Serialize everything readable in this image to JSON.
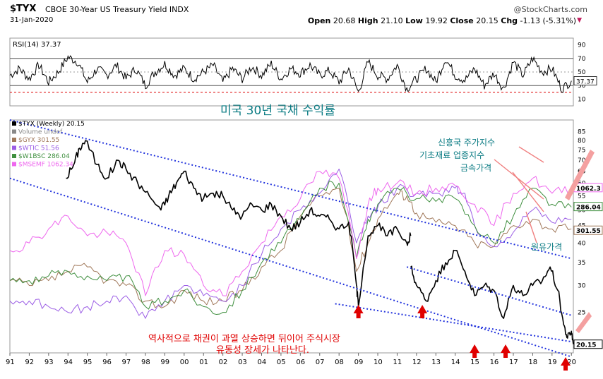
{
  "header": {
    "ticker": "$TYX",
    "title": "CBOE 30-Year US Treasury Yield INDX",
    "brand": "@StockCharts.com",
    "date": "31-Jan-2020",
    "open_label": "Open",
    "open": "20.68",
    "high_label": "High",
    "high": "21.10",
    "low_label": "Low",
    "low": "19.92",
    "close_label": "Close",
    "close": "20.15",
    "chg_label": "Chg",
    "chg": "-1.13 (-5.31%)",
    "chg_icon": "triangle-down-icon"
  },
  "colors": {
    "tyx": "#000000",
    "up": "#e53935",
    "gyx": "#a0785a",
    "wtic": "#9b5de5",
    "w1bsc": "#3f8f3f",
    "msemf": "#ee66ee",
    "trend": "#2233dd",
    "annotation_red": "#e00000",
    "annotation_teal": "#0a7b83"
  },
  "rsi_panel": {
    "label": "RSI(14) 37.37",
    "value_badge": "37.37",
    "ticks": [
      90,
      70,
      50,
      30,
      10
    ],
    "overbought": 70,
    "oversold": 30,
    "extreme_low": 20
  },
  "main_panel": {
    "legend": [
      {
        "text": "$TYX (Weekly) 20.15",
        "color": "#000000"
      },
      {
        "text": "Volume undef",
        "color": "#888888"
      },
      {
        "text": "$GYX 301.55",
        "color": "#a0785a"
      },
      {
        "text": "$WTIC 51.56",
        "color": "#9b5de5"
      },
      {
        "text": "$W1BSC 286.04",
        "color": "#3f8f3f"
      },
      {
        "text": "$MSEMF 1062.34",
        "color": "#ee66ee"
      }
    ],
    "right_badges": [
      {
        "text": "1062.3",
        "color": "#ee66ee",
        "y": 58.2
      },
      {
        "text": "286.04",
        "color": "#3f8f3f",
        "y": 51.2
      },
      {
        "text": "301.55",
        "color": "#a0785a",
        "y": 43.6
      },
      {
        "text": "20.15",
        "color": "#000000",
        "y": 20.15
      }
    ],
    "annotations": {
      "title": "미국 30년 국채 수익률",
      "msemf": "신흥국 주가지수",
      "w1bsc": "기초재료 업종지수",
      "gyx": "금속가격",
      "wtic": "원유가격",
      "note_line1": "역사적으로 채권이 과열 상승하면 뒤이어 주식시장",
      "note_line2": "유동성 장세가 나타난다."
    }
  },
  "chart_data": {
    "type": "line",
    "title": "CBOE 30-Year US Treasury Yield INDX",
    "xlabel": "",
    "ylabel": "",
    "x_ticks": [
      "91",
      "92",
      "93",
      "94",
      "95",
      "96",
      "97",
      "98",
      "99",
      "00",
      "01",
      "02",
      "03",
      "04",
      "05",
      "06",
      "07",
      "08",
      "09",
      "10",
      "11",
      "12",
      "13",
      "14",
      "15",
      "16",
      "17",
      "18",
      "19",
      "20"
    ],
    "xlim": [
      1991,
      2020.1
    ],
    "y_scale": "log",
    "ylim": [
      19,
      92
    ],
    "y_ticks": [
      20,
      25,
      30,
      35,
      40,
      45,
      50,
      55,
      60,
      65,
      70,
      75,
      80,
      85
    ],
    "grid": false,
    "legend_placement": "top-left",
    "series": [
      {
        "name": "$TYX (Weekly) 20.15",
        "x": [
          1993.9,
          1994.3,
          1994.6,
          1994.9,
          1995.5,
          1996.0,
          1996.6,
          1997.0,
          1997.6,
          1998.2,
          1998.8,
          1999.2,
          1999.6,
          2000.0,
          2000.5,
          2001.0,
          2001.5,
          2002.0,
          2002.5,
          2003.0,
          2003.5,
          2004.0,
          2004.5,
          2005.0,
          2005.5,
          2006.0,
          2006.5,
          2007.0,
          2007.5,
          2008.0,
          2008.5,
          2008.9,
          2009.0,
          2009.5,
          2010.0,
          2010.5,
          2011.0,
          2011.5,
          2011.7
        ],
        "y": [
          62,
          68,
          76,
          80,
          68,
          62,
          70,
          66,
          60,
          55,
          50,
          55,
          60,
          65,
          58,
          54,
          56,
          55,
          50,
          48,
          52,
          50,
          52,
          48,
          44,
          46,
          50,
          48,
          47,
          44,
          46,
          30,
          26,
          42,
          45,
          42,
          44,
          40,
          42
        ]
      },
      {
        "name": "$TYX (Weekly) 20.15 (later)",
        "x": [
          2011.7,
          2012.0,
          2012.5,
          2013.0,
          2013.5,
          2014.0,
          2014.5,
          2015.0,
          2015.5,
          2016.0,
          2016.5,
          2017.0,
          2017.5,
          2018.0,
          2018.5,
          2018.9,
          2019.3,
          2019.6,
          2019.8,
          2020.0,
          2020.1
        ],
        "y": [
          34,
          30,
          27,
          31,
          35,
          38,
          33,
          28,
          30,
          29,
          24,
          30,
          28,
          30,
          31,
          34,
          29,
          23,
          21,
          22,
          20.15
        ]
      },
      {
        "name": "$GYX 301.55",
        "x": [
          1991,
          1992,
          1993,
          1994,
          1995,
          1996,
          1997,
          1998,
          1999,
          2000,
          2001,
          2002,
          2003,
          2004,
          2005,
          2006,
          2007,
          2008,
          2008.9,
          2009.5,
          2010,
          2011,
          2011.5,
          2012,
          2013,
          2014,
          2015,
          2016,
          2017,
          2018,
          2019,
          2020
        ],
        "y": [
          31,
          30,
          31,
          33,
          34,
          31,
          30,
          27,
          26,
          29,
          27,
          27,
          29,
          34,
          38,
          48,
          55,
          58,
          33,
          40,
          47,
          56,
          55,
          49,
          46,
          45,
          40,
          39,
          45,
          47,
          44,
          44
        ]
      },
      {
        "name": "$WTIC 51.56",
        "x": [
          1991,
          1992,
          1993,
          1994,
          1995,
          1996,
          1997,
          1998,
          1999,
          2000,
          2001,
          2002,
          2003,
          2004,
          2005,
          2006,
          2007,
          2008,
          2008.9,
          2009.5,
          2010,
          2011,
          2012,
          2013,
          2014,
          2014.5,
          2015,
          2016,
          2017,
          2018,
          2019,
          2020
        ],
        "y": [
          27,
          27,
          26,
          25,
          26,
          27,
          28,
          24,
          27,
          30,
          28,
          27,
          30,
          37,
          44,
          50,
          56,
          66,
          40,
          48,
          51,
          58,
          56,
          56,
          58,
          56,
          45,
          39,
          43,
          50,
          46,
          47
        ]
      },
      {
        "name": "$W1BSC 286.04",
        "x": [
          1991,
          1992,
          1993,
          1994,
          1995,
          1996,
          1997,
          1998,
          1999,
          2000,
          2001,
          2002,
          2003,
          2004,
          2005,
          2006,
          2007,
          2008,
          2008.9,
          2009.5,
          2010,
          2011,
          2012,
          2013,
          2014,
          2015,
          2016,
          2017,
          2018,
          2019,
          2020
        ],
        "y": [
          31,
          31,
          32,
          33,
          32,
          31,
          32,
          26,
          27,
          29,
          26,
          25,
          29,
          35,
          40,
          47,
          58,
          60,
          36,
          47,
          52,
          58,
          54,
          53,
          54,
          45,
          40,
          48,
          58,
          52,
          51
        ]
      },
      {
        "name": "$MSEMF 1062.34",
        "x": [
          1991,
          1992,
          1993,
          1994,
          1995,
          1996,
          1997,
          1998,
          1999,
          2000,
          2001,
          2002,
          2003,
          2004,
          2005,
          2006,
          2007,
          2008,
          2008.9,
          2009.5,
          2010,
          2011,
          2012,
          2013,
          2014,
          2015,
          2016,
          2017,
          2018,
          2019,
          2020
        ],
        "y": [
          38,
          40,
          44,
          48,
          42,
          43,
          40,
          28,
          38,
          37,
          30,
          28,
          33,
          40,
          48,
          54,
          65,
          62,
          36,
          52,
          58,
          60,
          56,
          58,
          59,
          52,
          45,
          56,
          62,
          56,
          58
        ]
      }
    ],
    "trendlines": [
      {
        "x": [
          1991,
          2020
        ],
        "y": [
          92,
          36
        ],
        "style": "dotted"
      },
      {
        "x": [
          1991,
          2020
        ],
        "y": [
          62,
          18.5
        ],
        "style": "dotted"
      },
      {
        "x": [
          2007.8,
          2020
        ],
        "y": [
          26.5,
          20.5
        ],
        "style": "dotted"
      },
      {
        "x": [
          2011.5,
          2020
        ],
        "y": [
          34,
          24.5
        ],
        "style": "dotted"
      }
    ],
    "bottom_markers_x": [
      2009.0,
      2012.3,
      2015.0,
      2016.6,
      2019.7
    ],
    "rsi": {
      "x": [
        1991,
        1991.5,
        1992,
        1992.5,
        1993,
        1993.5,
        1994,
        1994.5,
        1995,
        1995.5,
        1996,
        1996.5,
        1997,
        1997.5,
        1998,
        1998.5,
        1999,
        1999.5,
        2000,
        2000.5,
        2001,
        2001.5,
        2002,
        2002.5,
        2003,
        2003.5,
        2004,
        2004.5,
        2005,
        2005.5,
        2006,
        2006.5,
        2007,
        2007.5,
        2008,
        2008.5,
        2009,
        2009.5,
        2010,
        2010.5,
        2011,
        2011.5,
        2012,
        2012.5,
        2013,
        2013.5,
        2014,
        2014.5,
        2015,
        2015.5,
        2016,
        2016.5,
        2017,
        2017.5,
        2018,
        2018.5,
        2019,
        2019.5,
        2020
      ],
      "y": [
        45,
        55,
        40,
        60,
        35,
        50,
        72,
        65,
        35,
        55,
        45,
        60,
        40,
        55,
        30,
        50,
        62,
        45,
        55,
        40,
        50,
        60,
        35,
        55,
        40,
        58,
        45,
        62,
        40,
        55,
        48,
        60,
        45,
        52,
        35,
        55,
        20,
        65,
        45,
        40,
        60,
        25,
        40,
        55,
        35,
        70,
        45,
        38,
        55,
        30,
        48,
        25,
        65,
        45,
        70,
        50,
        55,
        25,
        37
      ]
    }
  }
}
